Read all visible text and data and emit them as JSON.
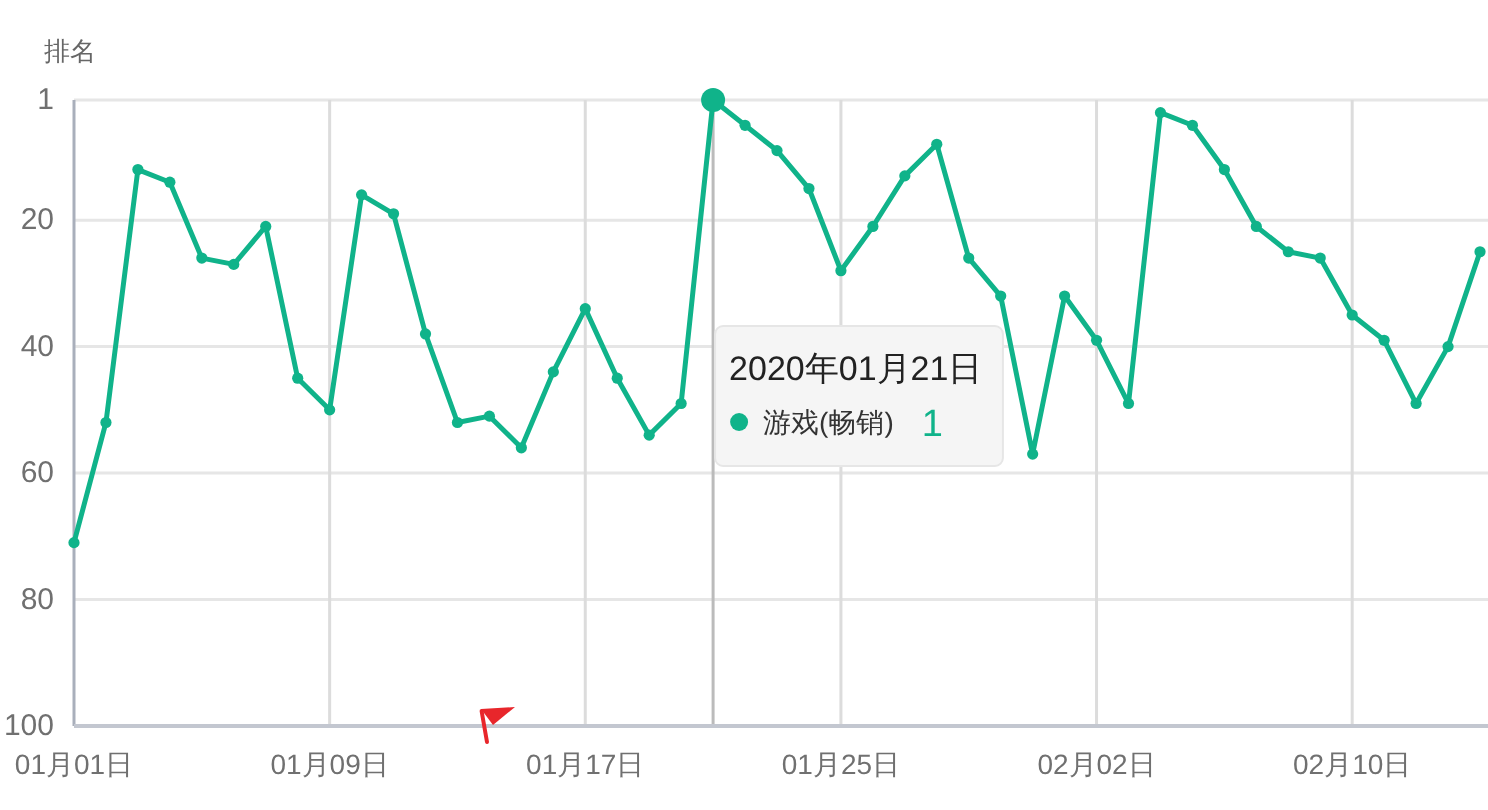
{
  "chart_data": {
    "type": "line",
    "ylabel": "排名",
    "x": [
      "2020-01-01",
      "2020-01-02",
      "2020-01-03",
      "2020-01-04",
      "2020-01-05",
      "2020-01-06",
      "2020-01-07",
      "2020-01-08",
      "2020-01-09",
      "2020-01-10",
      "2020-01-11",
      "2020-01-12",
      "2020-01-13",
      "2020-01-14",
      "2020-01-15",
      "2020-01-16",
      "2020-01-17",
      "2020-01-18",
      "2020-01-19",
      "2020-01-20",
      "2020-01-21",
      "2020-01-22",
      "2020-01-23",
      "2020-01-24",
      "2020-01-25",
      "2020-01-26",
      "2020-01-27",
      "2020-01-28",
      "2020-01-29",
      "2020-01-30",
      "2020-01-31",
      "2020-02-01",
      "2020-02-02",
      "2020-02-03",
      "2020-02-04",
      "2020-02-05",
      "2020-02-06",
      "2020-02-07",
      "2020-02-08",
      "2020-02-09",
      "2020-02-10",
      "2020-02-11",
      "2020-02-12",
      "2020-02-13",
      "2020-02-14"
    ],
    "series": [
      {
        "name": "游戏(畅销)",
        "color": "#10b38a",
        "values": [
          71,
          52,
          12,
          14,
          26,
          27,
          21,
          45,
          50,
          16,
          19,
          38,
          52,
          51,
          56,
          44,
          34,
          45,
          54,
          49,
          1,
          5,
          9,
          15,
          28,
          21,
          13,
          8,
          26,
          32,
          57,
          32,
          39,
          49,
          3,
          5,
          12,
          21,
          25,
          26,
          35,
          39,
          49,
          40,
          25
        ]
      }
    ],
    "xlim": [
      "2020-01-01",
      "2020-02-14T06:00"
    ],
    "xticks": [
      {
        "value": "2020-01-01",
        "label": "01月01日"
      },
      {
        "value": "2020-01-09",
        "label": "01月09日"
      },
      {
        "value": "2020-01-17",
        "label": "01月17日"
      },
      {
        "value": "2020-01-25",
        "label": "01月25日"
      },
      {
        "value": "2020-02-02",
        "label": "02月02日"
      },
      {
        "value": "2020-02-10",
        "label": "02月10日"
      }
    ],
    "ylim": [
      100,
      1
    ],
    "yticks": [
      1,
      20,
      40,
      60,
      80,
      100
    ],
    "grid": true,
    "marker": "circle",
    "line_style": "solid",
    "ref_lines": [
      {
        "axis": "x",
        "value": "2020-01-21",
        "color": "#bbbbbb"
      }
    ],
    "annotations": [
      "2020年01月21日",
      "1"
    ]
  }
}
